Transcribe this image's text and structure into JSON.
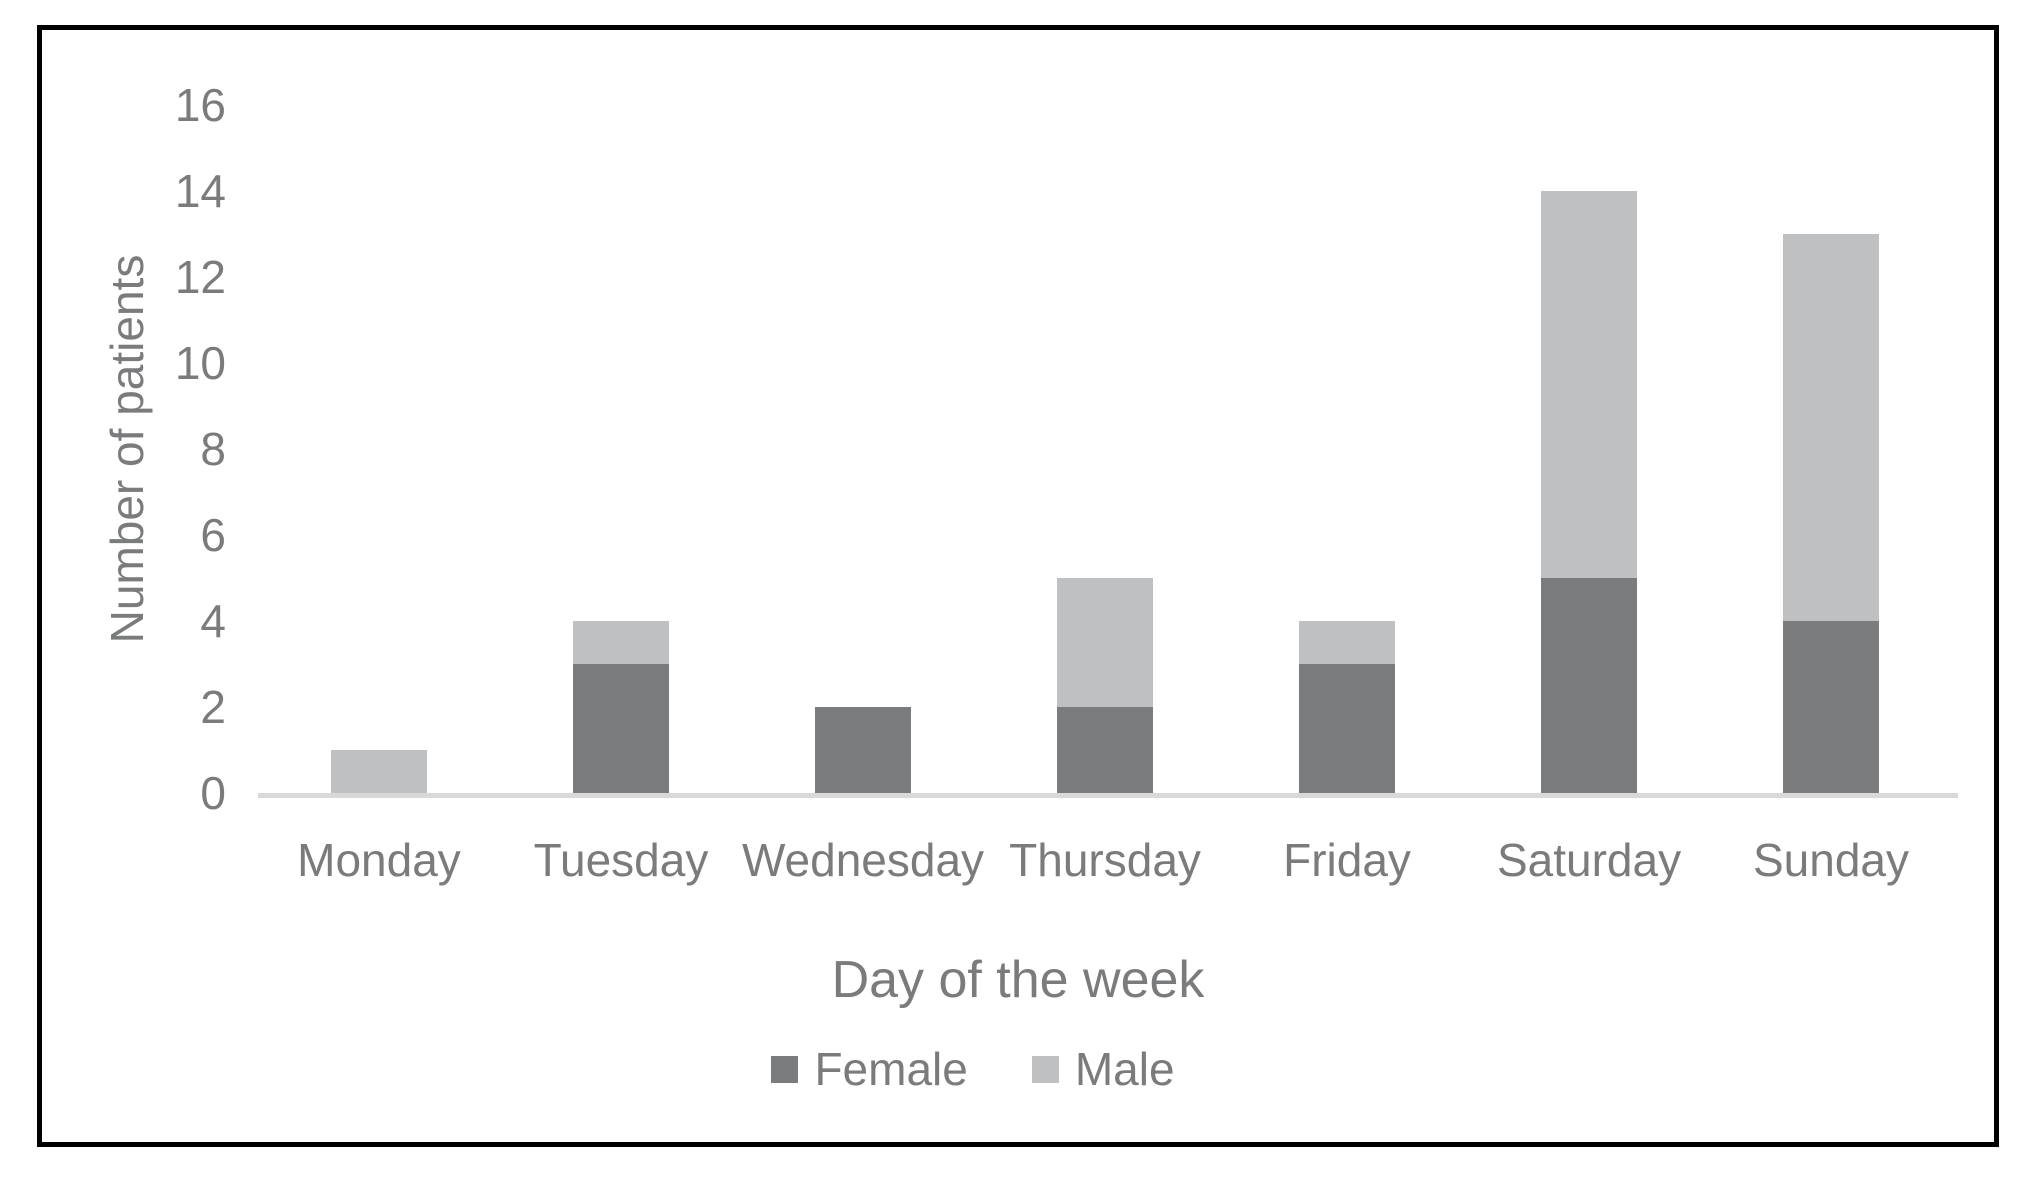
{
  "chart_data": {
    "type": "bar",
    "stacked": true,
    "title": "",
    "xlabel": "Day of the week",
    "ylabel": "Number of patients",
    "categories": [
      "Monday",
      "Tuesday",
      "Wednesday",
      "Thursday",
      "Friday",
      "Saturday",
      "Sunday"
    ],
    "series": [
      {
        "name": "Female",
        "color": "#7b7c7e",
        "values": [
          0,
          3,
          2,
          2,
          3,
          5,
          4
        ]
      },
      {
        "name": "Male",
        "color": "#bfc0c2",
        "values": [
          1,
          1,
          0,
          3,
          1,
          9,
          9
        ]
      }
    ],
    "totals": [
      1,
      4,
      2,
      5,
      4,
      14,
      13
    ],
    "ylim": [
      0,
      16
    ],
    "yticks": [
      0,
      2,
      4,
      6,
      8,
      10,
      12,
      14,
      16
    ],
    "grid": false,
    "legend_position": "bottom",
    "colors": {
      "axis_text": "#7a7b7d",
      "baseline": "#d9d9d9",
      "frame_border": "#000000",
      "background": "#ffffff"
    }
  }
}
